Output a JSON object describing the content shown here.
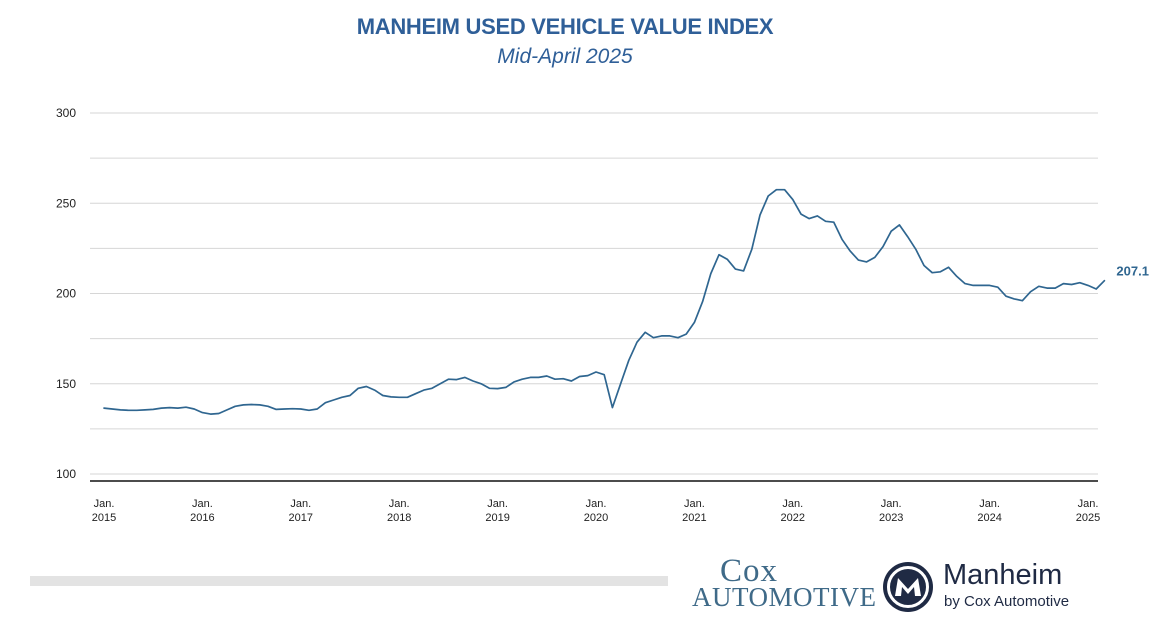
{
  "chart_data": {
    "type": "line",
    "title": "MANHEIM USED VEHICLE VALUE INDEX",
    "subtitle": "Mid-April 2025",
    "ylim": [
      100,
      300
    ],
    "yticks": [
      "100",
      "150",
      "200",
      "250",
      "300"
    ],
    "grid": true,
    "x_start": "2015-01",
    "xtick_labels": [
      {
        "month": "Jan.",
        "year": "2015"
      },
      {
        "month": "Jan.",
        "year": "2016"
      },
      {
        "month": "Jan.",
        "year": "2017"
      },
      {
        "month": "Jan.",
        "year": "2018"
      },
      {
        "month": "Jan.",
        "year": "2019"
      },
      {
        "month": "Jan.",
        "year": "2020"
      },
      {
        "month": "Jan.",
        "year": "2021"
      },
      {
        "month": "Jan.",
        "year": "2022"
      },
      {
        "month": "Jan.",
        "year": "2023"
      },
      {
        "month": "Jan.",
        "year": "2024"
      },
      {
        "month": "Jan.",
        "year": "2025"
      }
    ],
    "last_value_label": "207.1",
    "series": [
      {
        "color": "#2f6690",
        "values": [
          136.5,
          136,
          135.5,
          135.3,
          135.3,
          135.5,
          135.8,
          136.5,
          136.8,
          136.5,
          137,
          136,
          134,
          133.2,
          133.5,
          135.5,
          137.5,
          138.3,
          138.5,
          138.3,
          137.5,
          135.8,
          136,
          136.2,
          136,
          135.3,
          136,
          139.5,
          141,
          142.5,
          143.5,
          147.5,
          148.5,
          146.5,
          143.5,
          142.7,
          142.5,
          142.5,
          144.5,
          146.5,
          147.5,
          150,
          152.5,
          152.3,
          153.5,
          151.5,
          150,
          147.5,
          147.3,
          148,
          151,
          152.5,
          153.5,
          153.5,
          154.3,
          152.5,
          152.8,
          151.5,
          154,
          154.5,
          156.5,
          155,
          136.8,
          150,
          163,
          173,
          178.5,
          175.5,
          176.5,
          176.5,
          175.5,
          177.5,
          184,
          195.5,
          211,
          221.5,
          219,
          213.5,
          212.5,
          224.5,
          243.5,
          254,
          257.5,
          257.5,
          252,
          244,
          241.5,
          243,
          240,
          239.5,
          230,
          223.5,
          218.5,
          217.5,
          220,
          226,
          234.5,
          238,
          231.5,
          224.5,
          215.5,
          211.5,
          212,
          214.5,
          209.5,
          205.5,
          204.5,
          204.5,
          204.5,
          203.5,
          198.5,
          197,
          196,
          201,
          204,
          203,
          203,
          205.5,
          205,
          206,
          204.5,
          202.5,
          207.1
        ]
      }
    ]
  },
  "footer": {
    "cox_top": "Cox",
    "cox_bottom": "AUTOMOTIVE",
    "manheim_name": "Manheim",
    "manheim_tagline": "by Cox Automotive"
  }
}
